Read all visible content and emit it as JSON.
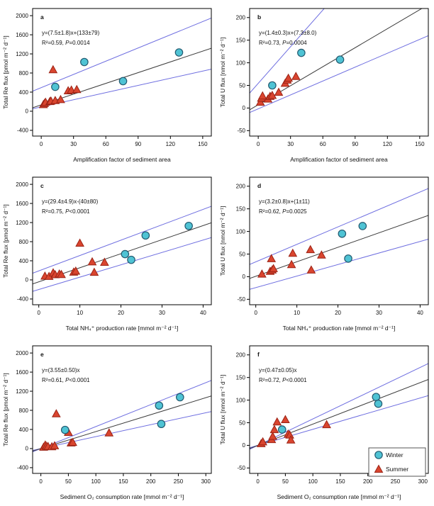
{
  "figure": {
    "colors": {
      "winter_fill": "#4fc3d4",
      "winter_stroke": "#235a70",
      "summer_fill": "#d9452f",
      "summer_stroke": "#9c2315",
      "ci_line": "#6e6ee0",
      "fit_line": "#3b3b3b",
      "frame": "#000000",
      "text": "#111111"
    },
    "legend": {
      "items": [
        {
          "label": "Winter",
          "marker": "circle"
        },
        {
          "label": "Summer",
          "marker": "triangle"
        }
      ]
    }
  },
  "chart_data": [
    {
      "type": "scatter",
      "label": "a",
      "equation": "y=(7.5±1.8)x+(133±79)",
      "stats": "R²=0.59, P=0.0014",
      "xlabel": "Amplification factor of sediment area",
      "ylabel": "Total Re flux [pmol m⁻² d⁻¹]",
      "xlim": [
        -8,
        158
      ],
      "ylim": [
        -520,
        2150
      ],
      "xticks": [
        0,
        30,
        60,
        90,
        120,
        150
      ],
      "yticks": [
        -400,
        0,
        400,
        800,
        1200,
        1600,
        2000
      ],
      "fit": {
        "x1": -8,
        "y1": 73,
        "x2": 158,
        "y2": 1318
      },
      "ci_upper": {
        "x1": -8,
        "y1": 420,
        "x2": 158,
        "y2": 1950
      },
      "ci_lower": {
        "x1": -8,
        "y1": 50,
        "x2": 158,
        "y2": 880
      },
      "series": [
        {
          "name": "Winter",
          "marker": "circle",
          "points": [
            [
              13,
              510
            ],
            [
              40,
              1030
            ],
            [
              76,
              630
            ],
            [
              128,
              1230
            ]
          ]
        },
        {
          "name": "Summer",
          "marker": "triangle",
          "points": [
            [
              2,
              140
            ],
            [
              3,
              165
            ],
            [
              4,
              190
            ],
            [
              8,
              205
            ],
            [
              9,
              215
            ],
            [
              13,
              225
            ],
            [
              18,
              245
            ],
            [
              11,
              870
            ],
            [
              25,
              430
            ],
            [
              28,
              445
            ],
            [
              33,
              455
            ]
          ]
        }
      ],
      "legend": false
    },
    {
      "type": "scatter",
      "label": "b",
      "equation": "y=(1.4±0.3)x+(7.3±8.0)",
      "stats": "R²=0.73, P=0.0004",
      "xlabel": "Amplification factor of sediment area",
      "ylabel": "Total U flux [nmol m⁻² d⁻¹]",
      "xlim": [
        -8,
        158
      ],
      "ylim": [
        -62,
        220
      ],
      "xticks": [
        0,
        30,
        60,
        90,
        120,
        150
      ],
      "yticks": [
        -50,
        0,
        50,
        100,
        150,
        200
      ],
      "fit": {
        "x1": -8,
        "y1": -3.9,
        "x2": 158,
        "y2": 228.5
      },
      "ci_upper": {
        "x1": -8,
        "y1": 33,
        "x2": 158,
        "y2": 481
      },
      "ci_lower": {
        "x1": -8,
        "y1": -10,
        "x2": 158,
        "y2": 160
      },
      "series": [
        {
          "name": "Winter",
          "marker": "circle",
          "points": [
            [
              13,
              50
            ],
            [
              40,
              122
            ],
            [
              76,
              107
            ]
          ]
        },
        {
          "name": "Summer",
          "marker": "triangle",
          "points": [
            [
              2,
              13
            ],
            [
              3,
              22
            ],
            [
              4,
              27
            ],
            [
              9,
              20
            ],
            [
              11,
              26
            ],
            [
              13,
              28
            ],
            [
              19,
              35
            ],
            [
              25,
              55
            ],
            [
              27,
              62
            ],
            [
              28,
              66
            ],
            [
              35,
              70
            ]
          ]
        }
      ],
      "legend": false
    },
    {
      "type": "scatter",
      "label": "c",
      "equation": "y=(29.4±4.9)x-(40±80)",
      "stats": "R²=0.75, P<0.0001",
      "xlabel": "Total NH₄⁺ production rate [mmol m⁻² d⁻¹]",
      "ylabel": "Total Re flux [pmol m⁻² d⁻¹]",
      "xlim": [
        -1.5,
        42
      ],
      "ylim": [
        -520,
        2150
      ],
      "xticks": [
        0,
        10,
        20,
        30,
        40
      ],
      "yticks": [
        -400,
        0,
        400,
        800,
        1200,
        1600,
        2000
      ],
      "fit": {
        "x1": -1.5,
        "y1": -84,
        "x2": 42,
        "y2": 1195
      },
      "ci_upper": {
        "x1": -1.5,
        "y1": 140,
        "x2": 42,
        "y2": 1540
      },
      "ci_lower": {
        "x1": -1.5,
        "y1": -240,
        "x2": 42,
        "y2": 885
      },
      "series": [
        {
          "name": "Winter",
          "marker": "circle",
          "points": [
            [
              21,
              540
            ],
            [
              22.5,
              420
            ],
            [
              26,
              930
            ],
            [
              36.5,
              1130
            ]
          ]
        },
        {
          "name": "Summer",
          "marker": "triangle",
          "points": [
            [
              1.5,
              80
            ],
            [
              2.5,
              75
            ],
            [
              3.5,
              150
            ],
            [
              4,
              110
            ],
            [
              5,
              125
            ],
            [
              5.5,
              115
            ],
            [
              8.5,
              165
            ],
            [
              9,
              185
            ],
            [
              10,
              770
            ],
            [
              13,
              380
            ],
            [
              13.5,
              160
            ],
            [
              16,
              370
            ]
          ]
        }
      ],
      "legend": false
    },
    {
      "type": "scatter",
      "label": "d",
      "equation": "y=(3.2±0.8)x+(1±11)",
      "stats": "R²=0.62, P=0.0025",
      "xlabel": "Total NH₄⁺ production rate [mmol m⁻² d⁻¹]",
      "ylabel": "Total U flux [nmol m⁻² d⁻¹]",
      "xlim": [
        -1.5,
        42
      ],
      "ylim": [
        -62,
        220
      ],
      "xticks": [
        0,
        10,
        20,
        30,
        40
      ],
      "yticks": [
        -50,
        0,
        50,
        100,
        150,
        200
      ],
      "fit": {
        "x1": -1.5,
        "y1": -3.8,
        "x2": 42,
        "y2": 135.4
      },
      "ci_upper": {
        "x1": -1.5,
        "y1": 27,
        "x2": 42,
        "y2": 195
      },
      "ci_lower": {
        "x1": -1.5,
        "y1": -28,
        "x2": 42,
        "y2": 83
      },
      "series": [
        {
          "name": "Winter",
          "marker": "circle",
          "points": [
            [
              21,
              95
            ],
            [
              22.5,
              40
            ],
            [
              26,
              112
            ]
          ]
        },
        {
          "name": "Summer",
          "marker": "triangle",
          "points": [
            [
              1.5,
              6
            ],
            [
              3.5,
              12
            ],
            [
              4,
              15
            ],
            [
              4.3,
              18
            ],
            [
              3.8,
              40
            ],
            [
              8.7,
              27
            ],
            [
              9,
              52
            ],
            [
              13.3,
              60
            ],
            [
              13.5,
              15
            ],
            [
              16,
              48
            ]
          ]
        }
      ],
      "legend": false
    },
    {
      "type": "scatter",
      "label": "e",
      "equation": "y=(3.55±0.50)x",
      "stats": "R²=0.61, P<0.0001",
      "xlabel": "Sediment O₂ consumption rate [mmol m⁻² d⁻¹]",
      "ylabel": "Total Re flux [pmol m⁻² d⁻¹]",
      "xlim": [
        -15,
        310
      ],
      "ylim": [
        -520,
        2150
      ],
      "xticks": [
        0,
        50,
        100,
        150,
        200,
        250,
        300
      ],
      "yticks": [
        -400,
        0,
        400,
        800,
        1200,
        1600,
        2000
      ],
      "fit": {
        "x1": -15,
        "y1": -53,
        "x2": 310,
        "y2": 1100
      },
      "ci_upper": {
        "x1": -15,
        "y1": -69,
        "x2": 310,
        "y2": 1426
      },
      "ci_lower": {
        "x1": -15,
        "y1": -38,
        "x2": 310,
        "y2": 775
      },
      "series": [
        {
          "name": "Winter",
          "marker": "circle",
          "points": [
            [
              44,
              390
            ],
            [
              215,
              900
            ],
            [
              219,
              515
            ],
            [
              253,
              1075
            ]
          ]
        },
        {
          "name": "Summer",
          "marker": "triangle",
          "points": [
            [
              5,
              30
            ],
            [
              8,
              75
            ],
            [
              10,
              50
            ],
            [
              13,
              45
            ],
            [
              20,
              40
            ],
            [
              25,
              60
            ],
            [
              28,
              730
            ],
            [
              50,
              340
            ],
            [
              55,
              120
            ],
            [
              58,
              130
            ],
            [
              124,
              330
            ]
          ]
        }
      ],
      "legend": false
    },
    {
      "type": "scatter",
      "label": "f",
      "equation": "y=(0.47±0.05)x",
      "stats": "R²=0.72, P<0.0001",
      "xlabel": "Sediment O₂ consumption rate [mmol m⁻² d⁻¹]",
      "ylabel": "Total U flux [nmol m⁻² d⁻¹]",
      "xlim": [
        -15,
        310
      ],
      "ylim": [
        -62,
        220
      ],
      "xticks": [
        0,
        50,
        100,
        150,
        200,
        250,
        300
      ],
      "yticks": [
        -50,
        0,
        50,
        100,
        150,
        200
      ],
      "fit": {
        "x1": -15,
        "y1": -7.1,
        "x2": 310,
        "y2": 145.7
      },
      "ci_upper": {
        "x1": -15,
        "y1": -8.8,
        "x2": 310,
        "y2": 181
      },
      "ci_lower": {
        "x1": -15,
        "y1": -5.3,
        "x2": 310,
        "y2": 110
      },
      "series": [
        {
          "name": "Winter",
          "marker": "circle",
          "points": [
            [
              44,
              35
            ],
            [
              215,
              107
            ],
            [
              219,
              92
            ]
          ]
        },
        {
          "name": "Summer",
          "marker": "triangle",
          "points": [
            [
              6,
              4
            ],
            [
              9,
              8
            ],
            [
              25,
              13
            ],
            [
              27,
              20
            ],
            [
              30,
              35
            ],
            [
              35,
              52
            ],
            [
              50,
              57
            ],
            [
              55,
              25
            ],
            [
              58,
              23
            ],
            [
              60,
              12
            ],
            [
              125,
              46
            ]
          ]
        }
      ],
      "legend": true
    }
  ]
}
